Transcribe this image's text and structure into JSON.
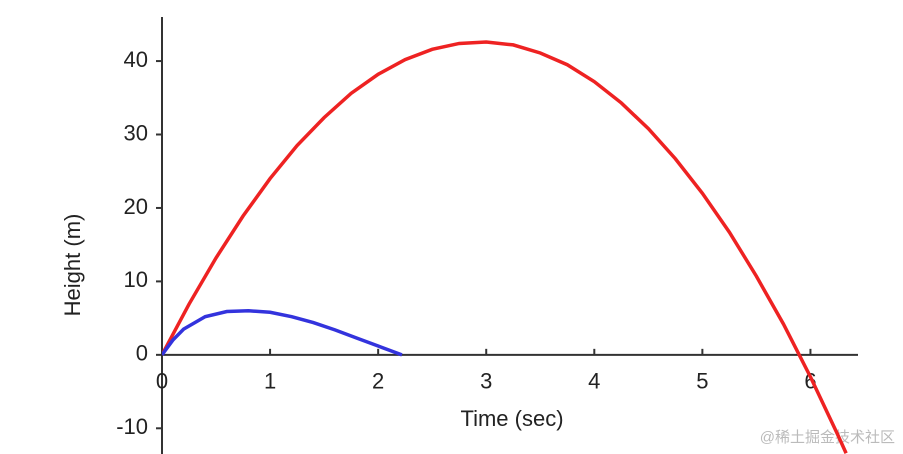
{
  "chart_data": {
    "type": "line",
    "xlabel": "Time (sec)",
    "ylabel": "Height (m)",
    "xlim": [
      0,
      6.44
    ],
    "ylim": [
      -13.5,
      46
    ],
    "xticks": [
      0,
      1,
      2,
      3,
      4,
      5,
      6
    ],
    "yticks": [
      -10,
      0,
      10,
      20,
      30,
      40
    ],
    "series": [
      {
        "color": "#ee2222",
        "x": [
          0,
          0.25,
          0.5,
          0.75,
          1,
          1.25,
          1.5,
          1.75,
          2,
          2.25,
          2.5,
          2.75,
          3,
          3.25,
          3.5,
          3.75,
          4,
          4.25,
          4.5,
          4.75,
          5,
          5.25,
          5.5,
          5.75,
          6,
          6.25,
          6.33
        ],
        "values": [
          0,
          6.9,
          13.2,
          18.9,
          24.0,
          28.5,
          32.3,
          35.6,
          38.2,
          40.2,
          41.6,
          42.4,
          42.6,
          42.2,
          41.1,
          39.5,
          37.2,
          34.3,
          30.8,
          26.7,
          22.0,
          16.7,
          10.7,
          4.2,
          -3.0,
          -10.8,
          -13.4
        ]
      },
      {
        "color": "#3333dd",
        "x": [
          0,
          0.1,
          0.2,
          0.4,
          0.6,
          0.8,
          1.0,
          1.2,
          1.4,
          1.6,
          1.8,
          2.0,
          2.22
        ],
        "values": [
          0,
          2.0,
          3.5,
          5.2,
          5.9,
          6.0,
          5.8,
          5.2,
          4.4,
          3.4,
          2.3,
          1.2,
          0
        ]
      }
    ],
    "watermark": "@稀土掘金技术社区"
  }
}
